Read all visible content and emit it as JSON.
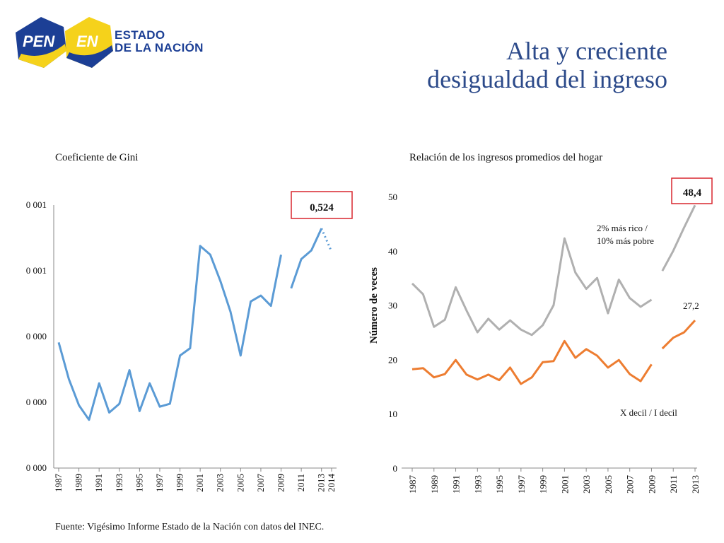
{
  "header": {
    "logo_pen": "PEN",
    "logo_en": "EN",
    "logo_line1": "ESTADO",
    "logo_line2": "DE LA NACIÓN",
    "title_line1": "Alta y creciente",
    "title_line2": "desigualdad del ingreso"
  },
  "footer": {
    "source": "Fuente: Vigésimo Informe Estado de la Nación con datos del INEC."
  },
  "colors": {
    "gini": "#5b9bd5",
    "rich": "#b0b0b0",
    "decil": "#ed7d31",
    "callout": "#d9272e",
    "title": "#2c4a8a"
  },
  "chart_data": [
    {
      "type": "line",
      "title": "Coeficiente de Gini",
      "xlabel": "",
      "ylabel": "",
      "yticks": [
        "0 000",
        "0 000",
        "0 000",
        "0 001",
        "0 001"
      ],
      "ylim": [
        0.36,
        0.54
      ],
      "xticks": [
        "1987",
        "1989",
        "1991",
        "1993",
        "1995",
        "1997",
        "1999",
        "2001",
        "2003",
        "2005",
        "2007",
        "2009",
        "2011",
        "2013",
        "2014"
      ],
      "series": [
        {
          "segment": "1987-2009",
          "x": [
            1987,
            1988,
            1989,
            1990,
            1991,
            1992,
            1993,
            1994,
            1995,
            1996,
            1997,
            1998,
            1999,
            2000,
            2001,
            2002,
            2003,
            2004,
            2005,
            2006,
            2007,
            2008,
            2009
          ],
          "y": [
            0.446,
            0.421,
            0.403,
            0.393,
            0.418,
            0.398,
            0.404,
            0.427,
            0.399,
            0.418,
            0.402,
            0.404,
            0.437,
            0.442,
            0.512,
            0.506,
            0.488,
            0.467,
            0.437,
            0.474,
            0.478,
            0.471,
            0.506
          ]
        },
        {
          "segment": "2010-2013",
          "x": [
            2010,
            2011,
            2012,
            2013
          ],
          "y": [
            0.483,
            0.503,
            0.509,
            0.524
          ]
        },
        {
          "segment": "2013-2014 dotted",
          "x": [
            2013,
            2014
          ],
          "y": [
            0.524,
            0.508
          ],
          "style": "dotted"
        }
      ],
      "callout": "0,524"
    },
    {
      "type": "line",
      "title": "Relación de los ingresos promedios del hogar",
      "xlabel": "",
      "ylabel": "Número de veces",
      "ylim": [
        0,
        50
      ],
      "yticks": [
        0,
        10,
        20,
        30,
        40,
        50
      ],
      "xticks": [
        "1987",
        "1989",
        "1991",
        "1993",
        "1995",
        "1997",
        "1999",
        "2001",
        "2003",
        "2005",
        "2007",
        "2009",
        "2011",
        "2013"
      ],
      "series": [
        {
          "name": "2% más rico / 10% más pobre",
          "segment": "1987-2009",
          "x": [
            1987,
            1988,
            1989,
            1990,
            1991,
            1992,
            1993,
            1994,
            1995,
            1996,
            1997,
            1998,
            1999,
            2000,
            2001,
            2002,
            2003,
            2004,
            2005,
            2006,
            2007,
            2008,
            2009
          ],
          "y": [
            34,
            32,
            26,
            27.3,
            33.3,
            29,
            25,
            27.5,
            25.5,
            27.2,
            25.5,
            24.5,
            26.3,
            30,
            42.3,
            36,
            33,
            35,
            28.5,
            34.7,
            31.3,
            29.7,
            31
          ]
        },
        {
          "name": "2% más rico / 10% más pobre",
          "segment": "2010-2013",
          "x": [
            2010,
            2011,
            2012,
            2013
          ],
          "y": [
            36.3,
            40,
            44.3,
            48.4
          ]
        },
        {
          "name": "X decil / I decil",
          "segment": "1987-2009",
          "x": [
            1987,
            1988,
            1989,
            1990,
            1991,
            1992,
            1993,
            1994,
            1995,
            1996,
            1997,
            1998,
            1999,
            2000,
            2001,
            2002,
            2003,
            2004,
            2005,
            2006,
            2007,
            2008,
            2009
          ],
          "y": [
            18.2,
            18.4,
            16.7,
            17.3,
            19.9,
            17.2,
            16.3,
            17.2,
            16.2,
            18.5,
            15.5,
            16.7,
            19.5,
            19.7,
            23.4,
            20.3,
            21.9,
            20.7,
            18.5,
            19.9,
            17.3,
            16,
            19.1
          ]
        },
        {
          "name": "X decil / I decil",
          "segment": "2010-2013",
          "x": [
            2010,
            2011,
            2012,
            2013
          ],
          "y": [
            22,
            24,
            25,
            27.2
          ]
        }
      ],
      "label_rich_line1": "2% más rico /",
      "label_rich_line2": "10% más pobre",
      "label_decil": "X decil / I decil",
      "label_decil_value": "27,2",
      "callout": "48,4"
    }
  ]
}
